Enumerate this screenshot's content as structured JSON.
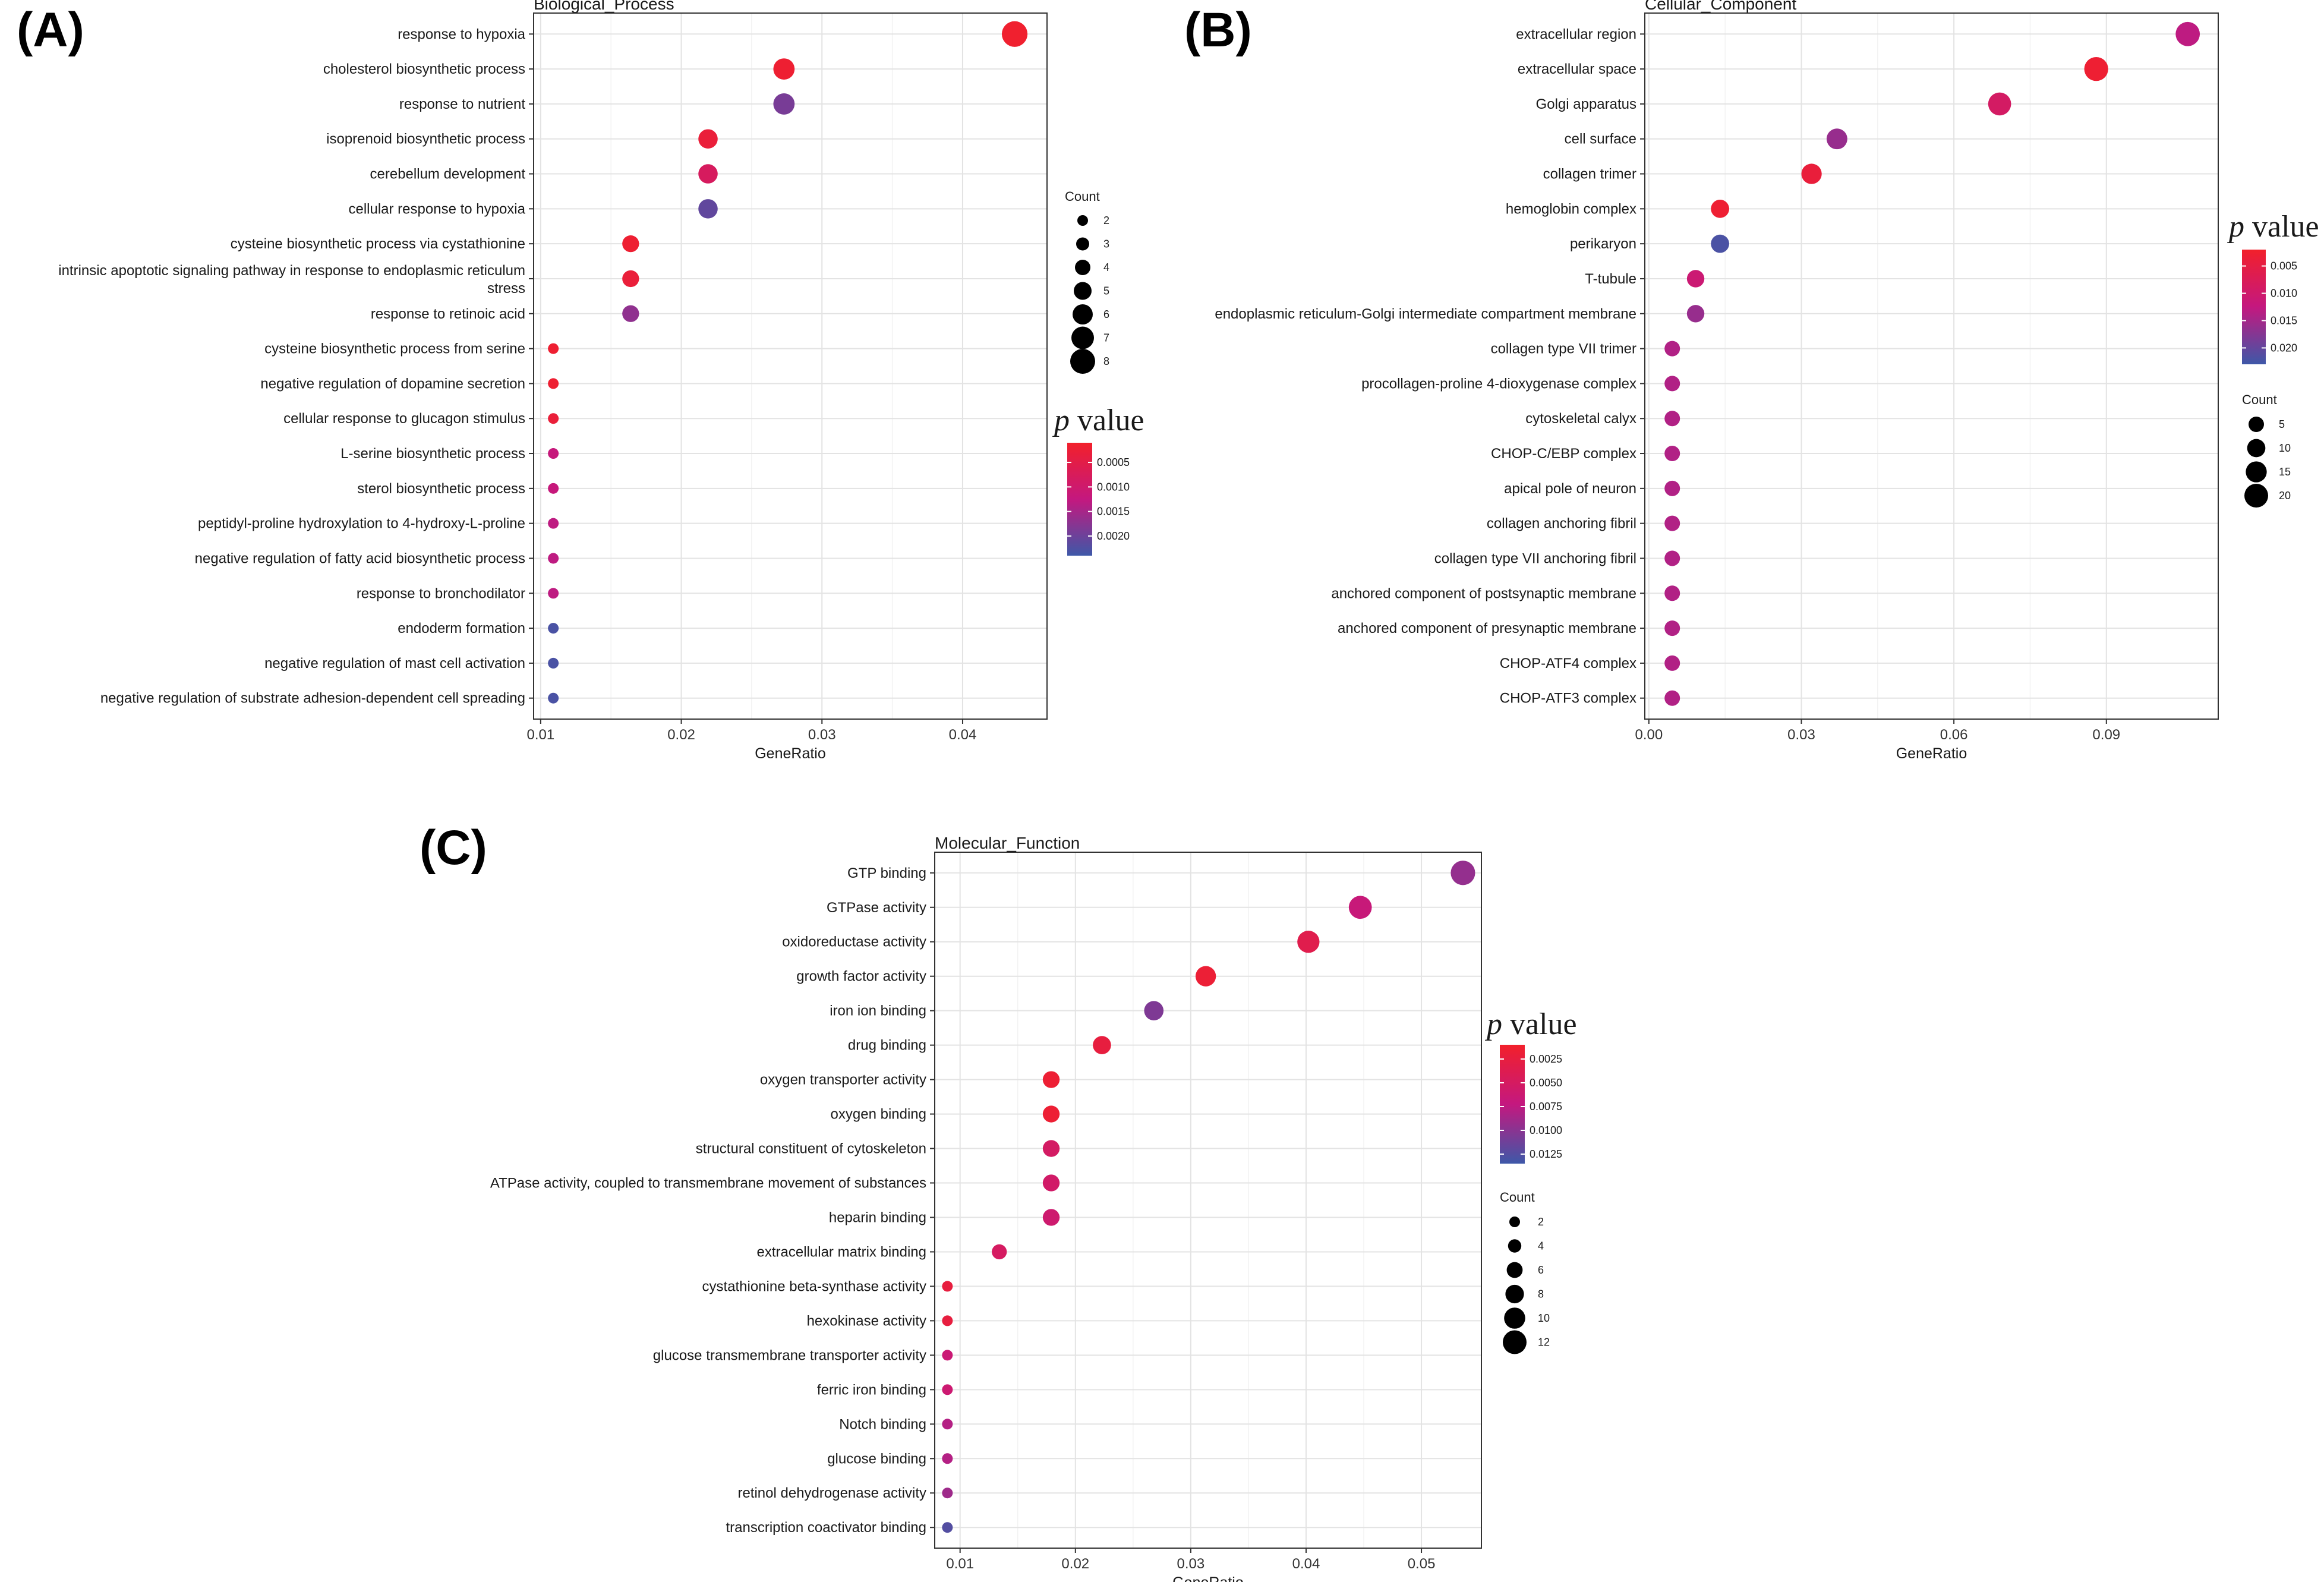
{
  "colors": {
    "low_p": "#f2202b",
    "mid_p": "#c4187f",
    "high_p": "#3e58a8",
    "legend_dot": "#000000"
  },
  "chart_data": [
    {
      "panel": "(A)",
      "type": "scatter",
      "title": "Biological_Process",
      "xlabel": "GeneRatio",
      "xlim": [
        0.0095,
        0.046
      ],
      "xticks": [
        0.01,
        0.02,
        0.03,
        0.04
      ],
      "xtick_labels": [
        "0.01",
        "0.02",
        "0.03",
        "0.04"
      ],
      "categories": [
        "response to hypoxia",
        "cholesterol biosynthetic process",
        "response to nutrient",
        "isoprenoid biosynthetic process",
        "cerebellum development",
        "cellular response to hypoxia",
        "cysteine biosynthetic process via cystathionine",
        "intrinsic apoptotic signaling pathway in response to endoplasmic reticulum stress",
        "response to retinoic acid",
        "cysteine biosynthetic process from serine",
        "negative regulation of dopamine secretion",
        "cellular response to glucagon stimulus",
        "L-serine biosynthetic process",
        "sterol biosynthetic process",
        "peptidyl-proline hydroxylation to 4-hydroxy-L-proline",
        "negative regulation of fatty acid biosynthetic process",
        "response to bronchodilator",
        "endoderm formation",
        "negative regulation of mast cell activation",
        "negative regulation of substrate adhesion-dependent cell spreading"
      ],
      "category_display": [
        [
          "response to hypoxia"
        ],
        [
          "cholesterol biosynthetic process"
        ],
        [
          "response to nutrient"
        ],
        [
          "isoprenoid biosynthetic process"
        ],
        [
          "cerebellum development"
        ],
        [
          "cellular response to hypoxia"
        ],
        [
          "cysteine biosynthetic process via cystathionine"
        ],
        [
          "intrinsic apoptotic signaling pathway in response to endoplasmic reticulum",
          "stress"
        ],
        [
          "response to retinoic acid"
        ],
        [
          "cysteine biosynthetic process from serine"
        ],
        [
          "negative regulation of dopamine secretion"
        ],
        [
          "cellular response to glucagon stimulus"
        ],
        [
          "L-serine biosynthetic process"
        ],
        [
          "sterol biosynthetic process"
        ],
        [
          "peptidyl-proline hydroxylation to 4-hydroxy-L-proline"
        ],
        [
          "negative regulation of fatty acid biosynthetic process"
        ],
        [
          "response to bronchodilator"
        ],
        [
          "endoderm formation"
        ],
        [
          "negative regulation of mast cell activation"
        ],
        [
          "negative regulation of substrate adhesion-dependent cell spreading"
        ]
      ],
      "gene_ratio": [
        0.0437,
        0.0273,
        0.0273,
        0.0219,
        0.0219,
        0.0219,
        0.0164,
        0.0164,
        0.0164,
        0.0109,
        0.0109,
        0.0109,
        0.0109,
        0.0109,
        0.0109,
        0.0109,
        0.0109,
        0.0109,
        0.0109,
        0.0109
      ],
      "count": [
        8,
        5,
        5,
        4,
        4,
        4,
        3,
        3,
        3,
        2,
        2,
        2,
        2,
        2,
        2,
        2,
        2,
        2,
        2,
        2
      ],
      "p_value": [
        0.00015,
        0.0002,
        0.0019,
        0.0003,
        0.0008,
        0.0021,
        0.0002,
        0.0003,
        0.0017,
        0.0002,
        0.0002,
        0.0003,
        0.0012,
        0.0012,
        0.0013,
        0.0013,
        0.0013,
        0.0023,
        0.0023,
        0.0023
      ],
      "size_legend": {
        "title": "Count",
        "values": [
          2,
          3,
          4,
          5,
          6,
          7,
          8
        ],
        "labels": [
          "2",
          "3",
          "4",
          "5",
          "6",
          "7",
          "8"
        ]
      },
      "color_legend": {
        "title_italic": "p",
        "title_rest": " value",
        "min": 0.0001,
        "max": 0.0024,
        "ticks": [
          0.0005,
          0.001,
          0.0015,
          0.002
        ],
        "tick_labels": [
          "0.0005",
          "0.0010",
          "0.0015",
          "0.0020"
        ]
      }
    },
    {
      "panel": "(B)",
      "type": "scatter",
      "title": "Cellular_Component",
      "xlabel": "GeneRatio",
      "xlim": [
        -0.0008,
        0.112
      ],
      "xticks": [
        0.0,
        0.03,
        0.06,
        0.09
      ],
      "xtick_labels": [
        "0.00",
        "0.03",
        "0.06",
        "0.09"
      ],
      "categories": [
        "extracellular region",
        "extracellular space",
        "Golgi apparatus",
        "cell surface",
        "collagen trimer",
        "hemoglobin complex",
        "perikaryon",
        "T-tubule",
        "endoplasmic reticulum-Golgi intermediate compartment membrane",
        "collagen type VII trimer",
        "procollagen-proline 4-dioxygenase complex",
        "cytoskeletal calyx",
        "CHOP-C/EBP complex",
        "apical pole of neuron",
        "collagen anchoring fibril",
        "collagen type VII anchoring fibril",
        "anchored component of postsynaptic membrane",
        "anchored component of presynaptic membrane",
        "CHOP-ATF4 complex",
        "CHOP-ATF3 complex"
      ],
      "category_display": [
        [
          "extracellular region"
        ],
        [
          "extracellular space"
        ],
        [
          "Golgi apparatus"
        ],
        [
          "cell surface"
        ],
        [
          "collagen trimer"
        ],
        [
          "hemoglobin complex"
        ],
        [
          "perikaryon"
        ],
        [
          "T-tubule"
        ],
        [
          "endoplasmic reticulum-Golgi intermediate compartment membrane"
        ],
        [
          "collagen type VII trimer"
        ],
        [
          "procollagen-proline 4-dioxygenase complex"
        ],
        [
          "cytoskeletal calyx"
        ],
        [
          "CHOP-C/EBP complex"
        ],
        [
          "apical pole of neuron"
        ],
        [
          "collagen anchoring fibril"
        ],
        [
          "collagen type VII anchoring fibril"
        ],
        [
          "anchored component of postsynaptic membrane"
        ],
        [
          "anchored component of presynaptic membrane"
        ],
        [
          "CHOP-ATF4 complex"
        ],
        [
          "CHOP-ATF3 complex"
        ]
      ],
      "gene_ratio": [
        0.106,
        0.088,
        0.069,
        0.037,
        0.032,
        0.014,
        0.014,
        0.0092,
        0.0092,
        0.0046,
        0.0046,
        0.0046,
        0.0046,
        0.0046,
        0.0046,
        0.0046,
        0.0046,
        0.0046,
        0.0046,
        0.0046
      ],
      "count": [
        23,
        19,
        15,
        8,
        7,
        3,
        3,
        2,
        2,
        1,
        1,
        1,
        1,
        1,
        1,
        1,
        1,
        1,
        1,
        1
      ],
      "p_value": [
        0.013,
        0.003,
        0.009,
        0.016,
        0.004,
        0.003,
        0.022,
        0.011,
        0.016,
        0.014,
        0.014,
        0.014,
        0.014,
        0.014,
        0.014,
        0.014,
        0.014,
        0.014,
        0.014,
        0.014
      ],
      "size_legend": {
        "title": "Count",
        "values": [
          5,
          10,
          15,
          20
        ],
        "labels": [
          "5",
          "10",
          "15",
          "20"
        ]
      },
      "color_legend": {
        "title_italic": "p",
        "title_rest": " value",
        "min": 0.002,
        "max": 0.023,
        "ticks": [
          0.005,
          0.01,
          0.015,
          0.02
        ],
        "tick_labels": [
          "0.005",
          "0.010",
          "0.015",
          "0.020"
        ]
      }
    },
    {
      "panel": "(C)",
      "type": "scatter",
      "title": "Molecular_Function",
      "xlabel": "GeneRatio",
      "xlim": [
        0.0078,
        0.0552
      ],
      "xticks": [
        0.01,
        0.02,
        0.03,
        0.04,
        0.05
      ],
      "xtick_labels": [
        "0.01",
        "0.02",
        "0.03",
        "0.04",
        "0.05"
      ],
      "categories": [
        "GTP binding",
        "GTPase activity",
        "oxidoreductase activity",
        "growth factor activity",
        "iron ion binding",
        "drug binding",
        "oxygen transporter activity",
        "oxygen binding",
        "structural constituent of cytoskeleton",
        "ATPase activity, coupled to transmembrane movement of substances",
        "heparin binding",
        "extracellular matrix binding",
        "cystathionine beta-synthase activity",
        "hexokinase activity",
        "glucose transmembrane transporter activity",
        "ferric iron binding",
        "Notch binding",
        "glucose binding",
        "retinol dehydrogenase activity",
        "transcription coactivator binding"
      ],
      "category_display": [
        [
          "GTP binding"
        ],
        [
          "GTPase activity"
        ],
        [
          "oxidoreductase activity"
        ],
        [
          "growth factor activity"
        ],
        [
          "iron ion binding"
        ],
        [
          "drug binding"
        ],
        [
          "oxygen transporter activity"
        ],
        [
          "oxygen binding"
        ],
        [
          "structural constituent of cytoskeleton"
        ],
        [
          "ATPase activity, coupled to transmembrane movement of substances"
        ],
        [
          "heparin binding"
        ],
        [
          "extracellular matrix binding"
        ],
        [
          "cystathionine beta-synthase activity"
        ],
        [
          "hexokinase activity"
        ],
        [
          "glucose transmembrane transporter activity"
        ],
        [
          "ferric iron binding"
        ],
        [
          "Notch binding"
        ],
        [
          "glucose binding"
        ],
        [
          "retinol dehydrogenase activity"
        ],
        [
          "transcription coactivator binding"
        ]
      ],
      "gene_ratio": [
        0.0536,
        0.0447,
        0.0402,
        0.0313,
        0.0268,
        0.0223,
        0.0179,
        0.0179,
        0.0179,
        0.0179,
        0.0179,
        0.0134,
        0.0089,
        0.0089,
        0.0089,
        0.0089,
        0.0089,
        0.0089,
        0.0089,
        0.0089
      ],
      "count": [
        12,
        10,
        9,
        7,
        6,
        5,
        4,
        4,
        4,
        4,
        4,
        3,
        2,
        2,
        2,
        2,
        2,
        2,
        2,
        2
      ],
      "p_value": [
        0.0095,
        0.0068,
        0.0035,
        0.0018,
        0.0105,
        0.0025,
        0.0017,
        0.0017,
        0.0052,
        0.0055,
        0.006,
        0.005,
        0.0025,
        0.0025,
        0.0065,
        0.0062,
        0.008,
        0.008,
        0.009,
        0.0125
      ],
      "size_legend": {
        "title": "Count",
        "values": [
          2,
          4,
          6,
          8,
          10,
          12
        ],
        "labels": [
          "2",
          "4",
          "6",
          "8",
          "10",
          "12"
        ]
      },
      "color_legend": {
        "title_italic": "p",
        "title_rest": " value",
        "min": 0.001,
        "max": 0.0135,
        "ticks": [
          0.0025,
          0.005,
          0.0075,
          0.01,
          0.0125
        ],
        "tick_labels": [
          "0.0025",
          "0.0050",
          "0.0075",
          "0.0100",
          "0.0125"
        ]
      }
    }
  ]
}
